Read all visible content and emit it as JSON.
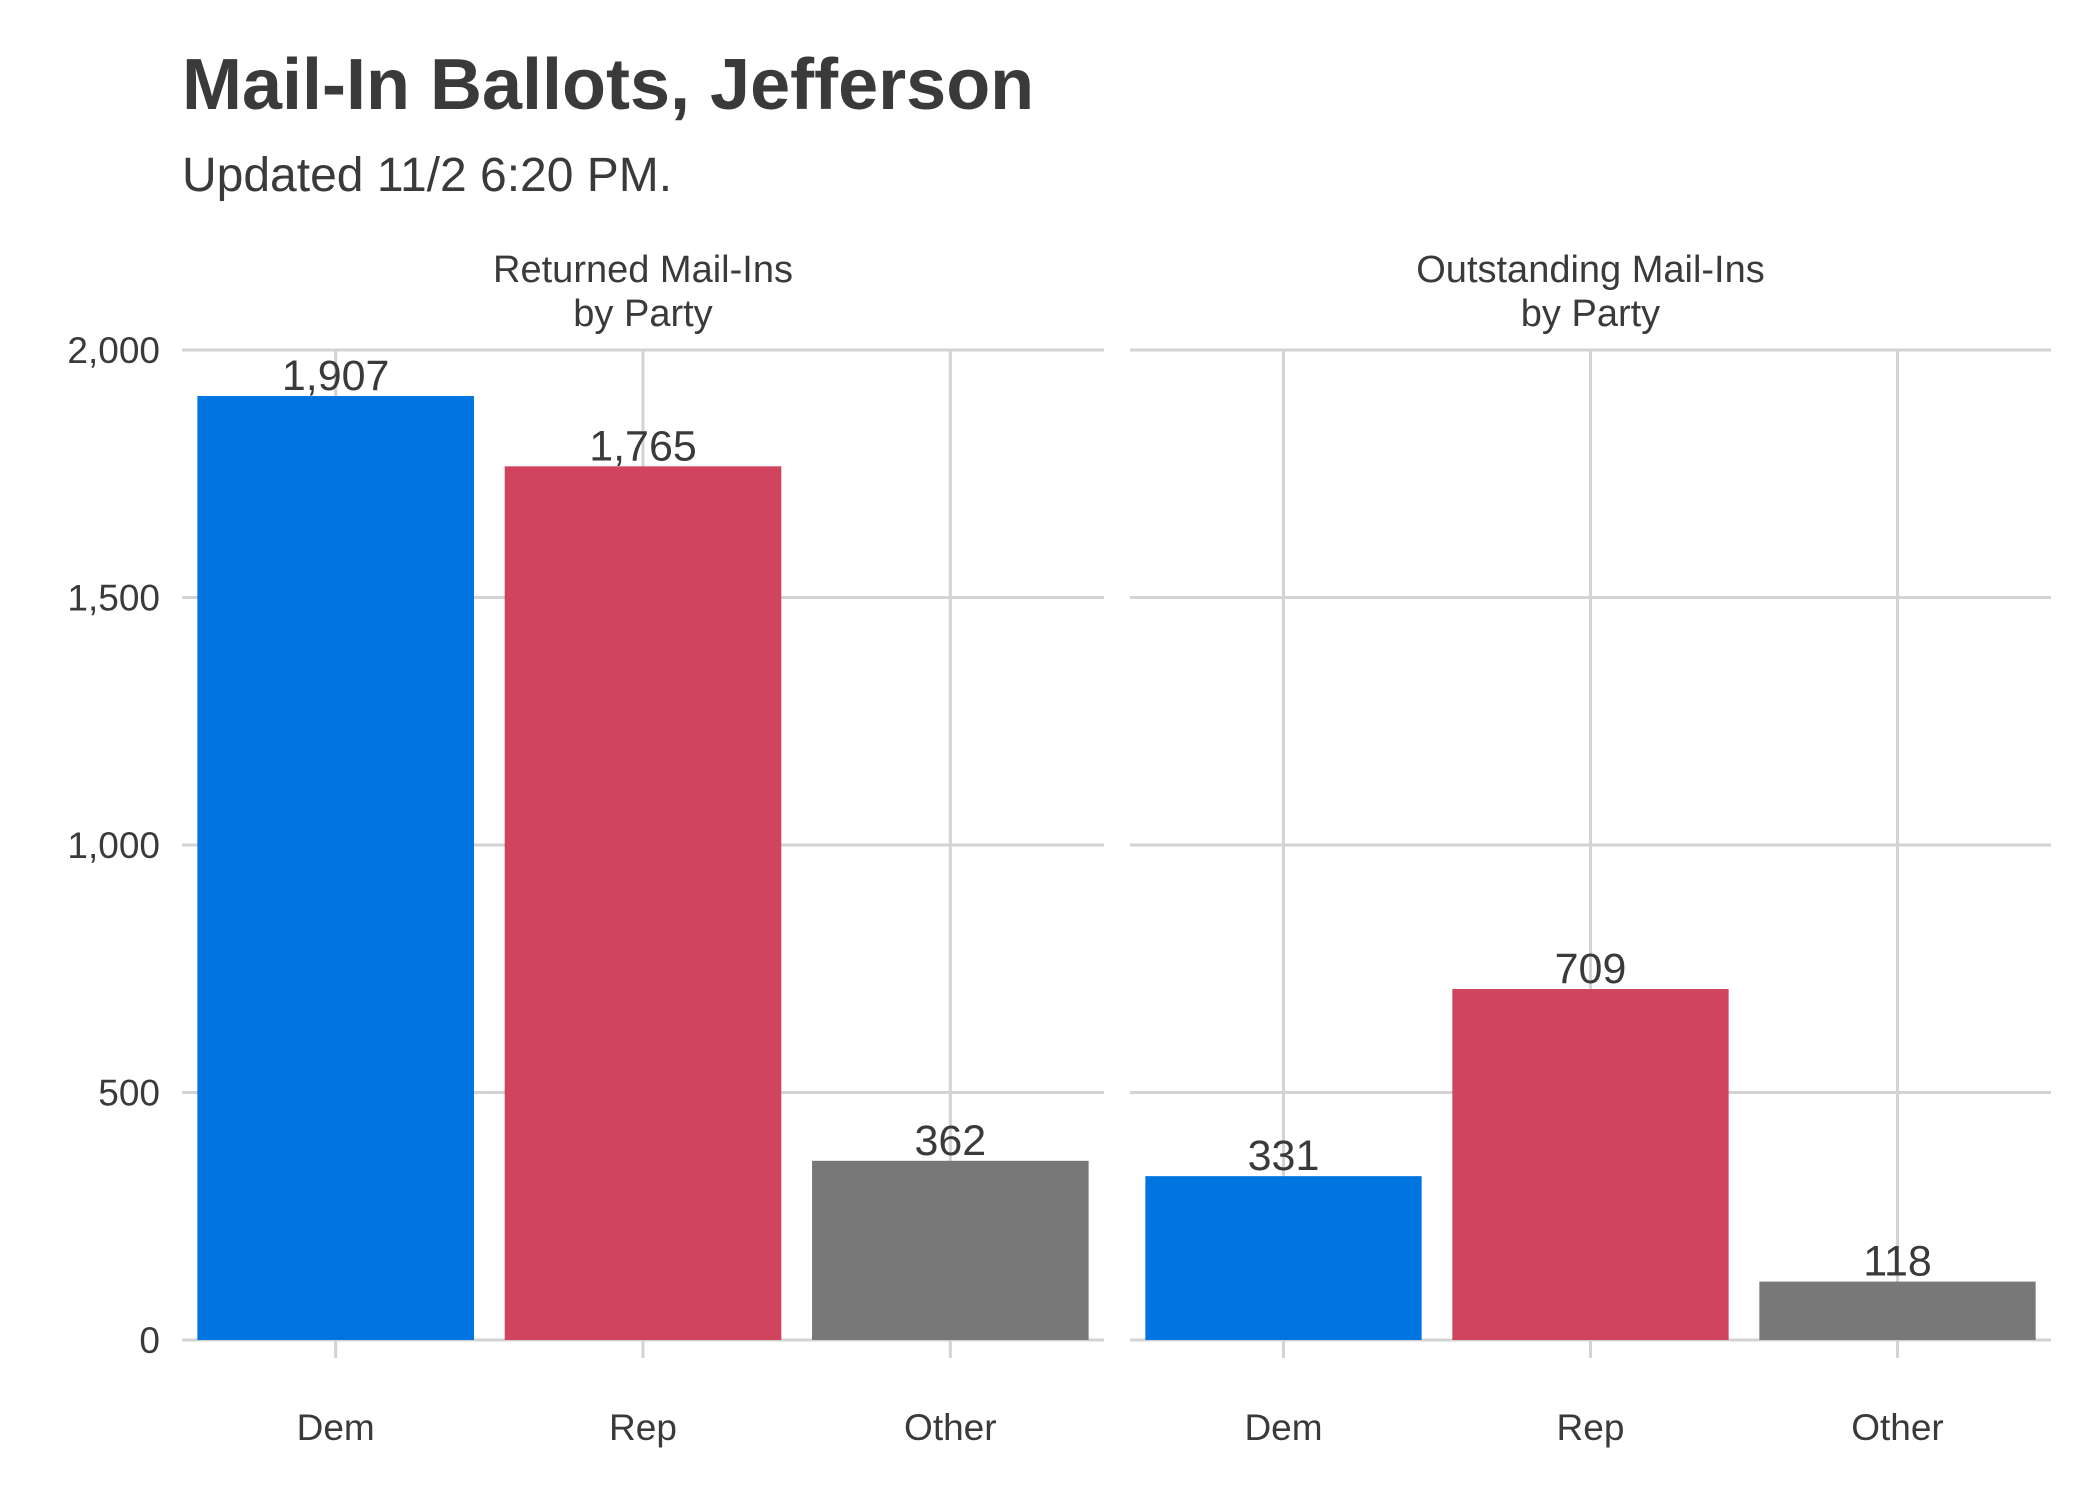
{
  "title": "Mail-In Ballots, Jefferson",
  "subtitle": "Updated 11/2 6:20 PM.",
  "chart_data": {
    "type": "bar",
    "layout": "facets",
    "categories": [
      "Dem",
      "Rep",
      "Other"
    ],
    "ylim": [
      0,
      2000
    ],
    "y_ticks": [
      0,
      500,
      1000,
      1500,
      2000
    ],
    "y_tick_labels": [
      "0",
      "500",
      "1,000",
      "1,500",
      "2,000"
    ],
    "grid": true,
    "colors": {
      "Dem": "#0074e0",
      "Rep": "#d0445e",
      "Other": "#787878"
    },
    "panels": [
      {
        "title_lines": [
          "Returned Mail-Ins",
          "by Party"
        ],
        "values": [
          1907,
          1765,
          362
        ],
        "labels": [
          "1,907",
          "1,765",
          "362"
        ]
      },
      {
        "title_lines": [
          "Outstanding Mail-Ins",
          "by Party"
        ],
        "values": [
          331,
          709,
          118
        ],
        "labels": [
          "331",
          "709",
          "118"
        ]
      }
    ]
  }
}
